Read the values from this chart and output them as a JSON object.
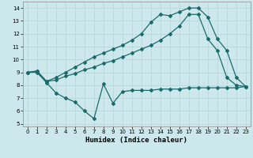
{
  "xlabel": "Humidex (Indice chaleur)",
  "bg_color": "#cce8ec",
  "grid_color": "#b8d8dc",
  "line_color": "#1a6b6b",
  "xlim": [
    -0.5,
    23.5
  ],
  "ylim": [
    4.8,
    14.5
  ],
  "yticks": [
    5,
    6,
    7,
    8,
    9,
    10,
    11,
    12,
    13,
    14
  ],
  "xticks": [
    0,
    1,
    2,
    3,
    4,
    5,
    6,
    7,
    8,
    9,
    10,
    11,
    12,
    13,
    14,
    15,
    16,
    17,
    18,
    19,
    20,
    21,
    22,
    23
  ],
  "series1_x": [
    0,
    1,
    2,
    3,
    4,
    5,
    6,
    7,
    8,
    9,
    10,
    11,
    12,
    13,
    14,
    15,
    16,
    17,
    18,
    19,
    20,
    21,
    22,
    23
  ],
  "series1_y": [
    9.0,
    9.0,
    8.2,
    7.4,
    7.0,
    6.7,
    6.0,
    5.4,
    8.1,
    6.6,
    7.5,
    7.6,
    7.6,
    7.6,
    7.7,
    7.7,
    7.7,
    7.8,
    7.8,
    7.8,
    7.8,
    7.8,
    7.8,
    7.9
  ],
  "series2_x": [
    0,
    1,
    2,
    3,
    4,
    5,
    6,
    7,
    8,
    9,
    10,
    11,
    12,
    13,
    14,
    15,
    16,
    17,
    18,
    19,
    20,
    21,
    22,
    23
  ],
  "series2_y": [
    9.0,
    9.1,
    8.3,
    8.4,
    8.7,
    8.9,
    9.2,
    9.4,
    9.7,
    9.9,
    10.2,
    10.5,
    10.8,
    11.1,
    11.5,
    12.0,
    12.6,
    13.5,
    13.5,
    11.6,
    10.7,
    8.6,
    8.0,
    7.9
  ],
  "series3_x": [
    0,
    1,
    2,
    3,
    4,
    5,
    6,
    7,
    8,
    9,
    10,
    11,
    12,
    13,
    14,
    15,
    16,
    17,
    18,
    19,
    20,
    21,
    22,
    23
  ],
  "series3_y": [
    9.0,
    9.1,
    8.3,
    8.6,
    9.0,
    9.4,
    9.8,
    10.2,
    10.5,
    10.8,
    11.1,
    11.5,
    12.0,
    12.9,
    13.5,
    13.4,
    13.7,
    14.0,
    14.0,
    13.3,
    11.6,
    10.7,
    8.6,
    7.9
  ]
}
